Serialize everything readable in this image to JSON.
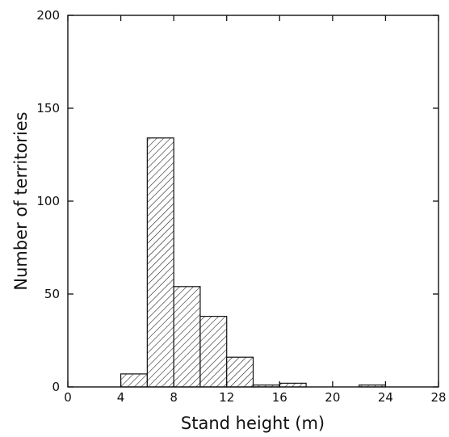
{
  "chart_data": {
    "type": "bar",
    "subtype": "histogram",
    "title": "",
    "xlabel": "Stand height (m)",
    "ylabel": "Number of territories",
    "xlim": [
      0,
      28
    ],
    "ylim": [
      0,
      200
    ],
    "xticks": [
      0,
      4,
      8,
      12,
      16,
      20,
      24,
      28
    ],
    "yticks": [
      0,
      50,
      100,
      150,
      200
    ],
    "bin_width": 2,
    "bins": [
      {
        "start": 4,
        "end": 6,
        "value": 7
      },
      {
        "start": 6,
        "end": 8,
        "value": 134
      },
      {
        "start": 8,
        "end": 10,
        "value": 54
      },
      {
        "start": 10,
        "end": 12,
        "value": 38
      },
      {
        "start": 12,
        "end": 14,
        "value": 16
      },
      {
        "start": 14,
        "end": 16,
        "value": 1
      },
      {
        "start": 16,
        "end": 18,
        "value": 2
      },
      {
        "start": 22,
        "end": 24,
        "value": 1
      }
    ],
    "bar_fill": "diagonal-hatch",
    "colors": {
      "stroke": "#111111",
      "background": "#ffffff"
    },
    "grid": false,
    "legend": "none"
  }
}
